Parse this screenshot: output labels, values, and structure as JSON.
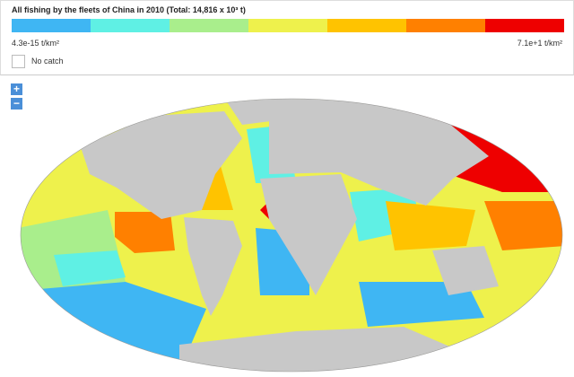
{
  "header": {
    "title": "All fishing by the fleets of China in 2010 (Total: 14,816 x 10³ t)"
  },
  "legend": {
    "colors": [
      "#3fb6f3",
      "#5ff0e4",
      "#a9ee8c",
      "#eef14c",
      "#ffc300",
      "#ff8000",
      "#ee0000"
    ],
    "min_label": "4.3e-15 t/km²",
    "max_label": "7.1e+1 t/km²",
    "no_catch": "No catch"
  },
  "controls": {
    "zoom_in": "+",
    "zoom_out": "−"
  }
}
